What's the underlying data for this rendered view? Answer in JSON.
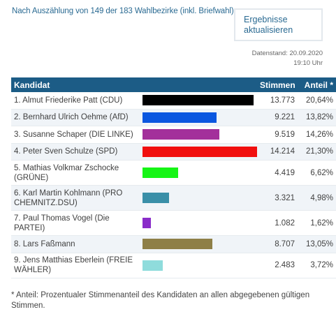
{
  "header": {
    "status": "Nach Auszählung von 149 der 183 Wahlbezirke (inkl. Briefwahl)",
    "refresh_line1": "Ergebnisse",
    "refresh_line2": "aktualisieren",
    "datestand_line1": "Datenstand: 20.09.2020",
    "datestand_line2": "19:10 Uhr"
  },
  "table": {
    "col_candidate": "Kandidat",
    "col_votes": "Stimmen",
    "col_share": "Anteil *"
  },
  "candidates": [
    {
      "name": "1. Almut Friederike Patt (CDU)",
      "votes": "13.773",
      "share": "20,64%",
      "share_value": 20.64,
      "color": "#000000"
    },
    {
      "name": "2. Bernhard Ulrich Oehme (AfD)",
      "votes": "9.221",
      "share": "13,82%",
      "share_value": 13.82,
      "color": "#0b57e0"
    },
    {
      "name": "3. Susanne Schaper (DIE LINKE)",
      "votes": "9.519",
      "share": "14,26%",
      "share_value": 14.26,
      "color": "#a3309b"
    },
    {
      "name": "4. Peter Sven Schulze (SPD)",
      "votes": "14.214",
      "share": "21,30%",
      "share_value": 21.3,
      "color": "#f10f0f"
    },
    {
      "name": "5. Mathias Volkmar Zschocke (GRÜNE)",
      "votes": "4.419",
      "share": "6,62%",
      "share_value": 6.62,
      "color": "#16f516"
    },
    {
      "name": "6. Karl Martin Kohlmann (PRO CHEMNITZ.DSU)",
      "votes": "3.321",
      "share": "4,98%",
      "share_value": 4.98,
      "color": "#3a8fa8"
    },
    {
      "name": "7. Paul Thomas Vogel (Die PARTEI)",
      "votes": "1.082",
      "share": "1,62%",
      "share_value": 1.62,
      "color": "#8a2cc9"
    },
    {
      "name": "8. Lars Faßmann",
      "votes": "8.707",
      "share": "13,05%",
      "share_value": 13.05,
      "color": "#8e7f47"
    },
    {
      "name": "9. Jens Matthias Eberlein (FREIE WÄHLER)",
      "votes": "2.483",
      "share": "3,72%",
      "share_value": 3.72,
      "color": "#8fdcdc"
    }
  ],
  "footnote": "* Anteil: Prozentualer Stimmenanteil des Kandidaten an allen abgegebenen gültigen Stimmen."
}
